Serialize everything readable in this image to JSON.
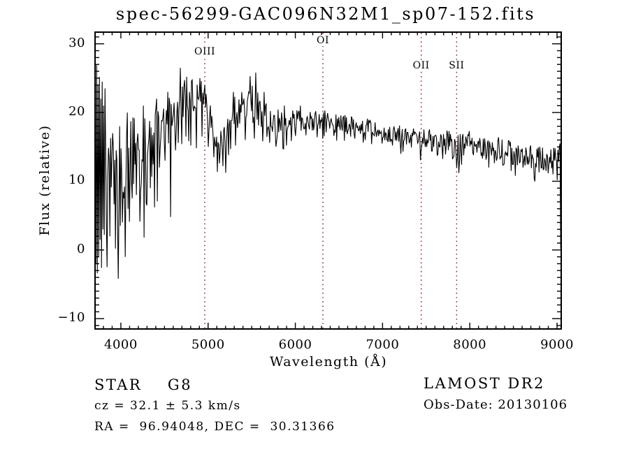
{
  "title": "spec-56299-GAC096N32M1_sp07-152.fits",
  "annotations": {
    "star_class": "STAR    G8",
    "cz": "cz = 32.1 ± 5.3 km/s",
    "radec": "RA =  96.94048, DEC =  30.31366",
    "survey": "LAMOST DR2",
    "obs_date": "Obs-Date: 20130106"
  },
  "chart_data": {
    "type": "line",
    "title": "spec-56299-GAC096N32M1_sp07-152.fits",
    "xlabel": "Wavelength (Å)",
    "ylabel": "Flux (relative)",
    "x_range": [
      3704,
      9048
    ],
    "y_range": [
      -11.5,
      31.7
    ],
    "x_ticks": [
      {
        "value": 4000,
        "label": "4000"
      },
      {
        "value": 5000,
        "label": "5000"
      },
      {
        "value": 6000,
        "label": "6000"
      },
      {
        "value": 7000,
        "label": "7000"
      },
      {
        "value": 8000,
        "label": "8000"
      },
      {
        "value": 9000,
        "label": "9000"
      }
    ],
    "y_ticks": [
      {
        "value": -10,
        "label": "−10"
      },
      {
        "value": 0,
        "label": "0"
      },
      {
        "value": 10,
        "label": "10"
      },
      {
        "value": 20,
        "label": "20"
      },
      {
        "value": 30,
        "label": "30"
      }
    ],
    "x_minor_step": 100,
    "y_minor_step": 1,
    "legend": "none",
    "grid": "off",
    "markers": [
      {
        "label": "OIII",
        "wavelength": 4962,
        "label_y": 74
      },
      {
        "label": "OI",
        "wavelength": 6316,
        "label_y": 58
      },
      {
        "label": "OII",
        "wavelength": 7443,
        "label_y": 94
      },
      {
        "label": "SII",
        "wavelength": 7849,
        "label_y": 94
      }
    ],
    "colors": {
      "line": "#000000",
      "marker_line": "#982424",
      "axis": "#000000",
      "background": "#ffffff"
    },
    "sample_step_angstrom": 8,
    "spectrum_envelope": [
      [
        3705,
        14,
        12
      ],
      [
        3725,
        11,
        12
      ],
      [
        3745,
        9.5,
        11
      ],
      [
        3770,
        10,
        9.5
      ],
      [
        3800,
        10,
        8.5
      ],
      [
        3830,
        10,
        8
      ],
      [
        3860,
        10.5,
        7.5
      ],
      [
        3900,
        10,
        7.5
      ],
      [
        3940,
        9.5,
        8.5
      ],
      [
        3970,
        10,
        8
      ],
      [
        4000,
        12,
        6.5
      ],
      [
        4040,
        13,
        6
      ],
      [
        4090,
        14,
        5.5
      ],
      [
        4140,
        14.5,
        5
      ],
      [
        4190,
        15,
        5
      ],
      [
        4240,
        14.5,
        5.5
      ],
      [
        4290,
        14,
        5.5
      ],
      [
        4340,
        15.2,
        5
      ],
      [
        4390,
        16.2,
        4.8
      ],
      [
        4440,
        17.6,
        4.3
      ],
      [
        4490,
        18.5,
        4
      ],
      [
        4540,
        19.2,
        4
      ],
      [
        4590,
        20.3,
        3.7
      ],
      [
        4640,
        21.2,
        3.3
      ],
      [
        4690,
        21.9,
        3
      ],
      [
        4740,
        22.3,
        2.9
      ],
      [
        4790,
        22.5,
        2.9
      ],
      [
        4840,
        22.2,
        2.9
      ],
      [
        4890,
        22.3,
        2.6
      ],
      [
        4940,
        21.8,
        2.6
      ],
      [
        4990,
        20.4,
        2.5
      ],
      [
        5040,
        18.6,
        2.6
      ],
      [
        5090,
        17.4,
        2.7
      ],
      [
        5140,
        16.6,
        3
      ],
      [
        5190,
        17.1,
        2.8
      ],
      [
        5240,
        18.2,
        2.6
      ],
      [
        5290,
        19.6,
        2.5
      ],
      [
        5340,
        20.3,
        2.5
      ],
      [
        5390,
        20.9,
        2.5
      ],
      [
        5440,
        21.3,
        2.6
      ],
      [
        5490,
        21.4,
        2.9
      ],
      [
        5540,
        21.1,
        2.7
      ],
      [
        5590,
        20.2,
        2.2
      ],
      [
        5640,
        19.7,
        2.1
      ],
      [
        5690,
        19.3,
        2
      ],
      [
        5740,
        19.1,
        2
      ],
      [
        5790,
        18.9,
        2.1
      ],
      [
        5840,
        18.7,
        2.1
      ],
      [
        5890,
        18.6,
        1.9
      ],
      [
        5950,
        18.9,
        1.6
      ],
      [
        6050,
        19,
        1.5
      ],
      [
        6150,
        18.9,
        1.5
      ],
      [
        6250,
        18.8,
        1.5
      ],
      [
        6350,
        18.6,
        1.4
      ],
      [
        6450,
        18.5,
        1.4
      ],
      [
        6550,
        18.2,
        1.5
      ],
      [
        6650,
        18.2,
        1.3
      ],
      [
        6750,
        18,
        1.3
      ],
      [
        6850,
        17.6,
        1.5
      ],
      [
        6950,
        17.4,
        1.3
      ],
      [
        7050,
        17.1,
        1.3
      ],
      [
        7150,
        16.9,
        1.4
      ],
      [
        7250,
        16.5,
        1.4
      ],
      [
        7350,
        16.4,
        1.3
      ],
      [
        7450,
        16.3,
        1.4
      ],
      [
        7550,
        16.2,
        1.4
      ],
      [
        7650,
        16,
        1.4
      ],
      [
        7750,
        15.8,
        1.6
      ],
      [
        7840,
        15.1,
        2.2
      ],
      [
        7880,
        14.9,
        2.3
      ],
      [
        7920,
        15.2,
        1.8
      ],
      [
        7980,
        15.5,
        1.4
      ],
      [
        8050,
        15.4,
        1.3
      ],
      [
        8150,
        15.1,
        1.5
      ],
      [
        8250,
        14.9,
        1.5
      ],
      [
        8350,
        14.6,
        1.5
      ],
      [
        8450,
        14.2,
        1.7
      ],
      [
        8550,
        13.9,
        1.7
      ],
      [
        8650,
        13.8,
        1.6
      ],
      [
        8750,
        13.6,
        1.7
      ],
      [
        8850,
        13.3,
        1.8
      ],
      [
        8950,
        13.2,
        1.9
      ],
      [
        9010,
        13.6,
        1.7
      ],
      [
        9035,
        13.5,
        1.5
      ],
      [
        9045,
        0.3,
        0.5
      ]
    ],
    "features_low": [
      [
        3710,
        -2
      ],
      [
        3726,
        -3.4
      ],
      [
        3742,
        -1
      ],
      [
        3758,
        1.5
      ],
      [
        3774,
        -2.6
      ],
      [
        3790,
        3
      ],
      [
        3806,
        2.2
      ],
      [
        3840,
        -2.5
      ],
      [
        3872,
        2
      ],
      [
        3908,
        1
      ],
      [
        3938,
        0.2
      ],
      [
        3966,
        -4.2
      ],
      [
        3992,
        3.5
      ],
      [
        4018,
        4
      ],
      [
        4046,
        -1
      ],
      [
        4082,
        6
      ],
      [
        4130,
        7.5
      ],
      [
        4176,
        8
      ],
      [
        4226,
        8.5
      ],
      [
        4262,
        1.8
      ],
      [
        4298,
        6.5
      ],
      [
        4340,
        9
      ],
      [
        4386,
        6.2
      ],
      [
        4440,
        12
      ],
      [
        4506,
        13
      ],
      [
        4572,
        4.8
      ],
      [
        4622,
        14.5
      ],
      [
        4682,
        16
      ],
      [
        4742,
        16.5
      ],
      [
        4802,
        15.2
      ],
      [
        4862,
        14.8
      ],
      [
        4930,
        16.5
      ],
      [
        5002,
        15
      ],
      [
        5062,
        13.5
      ],
      [
        5126,
        12.6
      ],
      [
        5172,
        12.2
      ],
      [
        5232,
        13.8
      ],
      [
        5312,
        15.2
      ],
      [
        5422,
        16
      ],
      [
        5530,
        16.2
      ],
      [
        5622,
        15.8
      ],
      [
        5706,
        15.6
      ],
      [
        5782,
        15.9
      ],
      [
        5894,
        15.2
      ],
      [
        6002,
        16.6
      ],
      [
        6122,
        16.7
      ],
      [
        6250,
        16.4
      ],
      [
        6310,
        16.2
      ],
      [
        6442,
        16.6
      ],
      [
        6562,
        15.9
      ],
      [
        6682,
        16.2
      ],
      [
        6802,
        16
      ],
      [
        6870,
        15.4
      ],
      [
        6990,
        15.5
      ],
      [
        7112,
        15.2
      ],
      [
        7232,
        14.3
      ],
      [
        7330,
        14.9
      ],
      [
        7442,
        14.5
      ],
      [
        7562,
        14.4
      ],
      [
        7632,
        13.9
      ],
      [
        7722,
        13.9
      ],
      [
        7802,
        13.2
      ],
      [
        7846,
        12
      ],
      [
        7872,
        11.2
      ],
      [
        7906,
        12.4
      ],
      [
        8042,
        13.8
      ],
      [
        8142,
        13.3
      ],
      [
        8216,
        12
      ],
      [
        8302,
        13
      ],
      [
        8390,
        12.5
      ],
      [
        8472,
        11.5
      ],
      [
        8522,
        10.8
      ],
      [
        8610,
        12
      ],
      [
        8702,
        11.9
      ],
      [
        8792,
        11.3
      ],
      [
        8872,
        11.5
      ],
      [
        8952,
        11
      ],
      [
        9040,
        0.2
      ]
    ],
    "features_high": [
      [
        3718,
        26.9
      ],
      [
        3734,
        24
      ],
      [
        3750,
        25.2
      ],
      [
        3766,
        22
      ],
      [
        3782,
        24.5
      ],
      [
        3798,
        21
      ],
      [
        3814,
        23.5
      ],
      [
        3902,
        17
      ],
      [
        3986,
        18
      ],
      [
        4070,
        20
      ],
      [
        4254,
        21
      ],
      [
        4410,
        22
      ],
      [
        4540,
        23
      ],
      [
        4680,
        26.5
      ],
      [
        4756,
        25.2
      ],
      [
        4810,
        24.6
      ],
      [
        4902,
        25
      ],
      [
        4960,
        24
      ],
      [
        5290,
        23
      ],
      [
        5482,
        25.3
      ],
      [
        5546,
        25.8
      ],
      [
        5642,
        23
      ],
      [
        5870,
        21
      ],
      [
        6060,
        21
      ],
      [
        6340,
        20.3
      ],
      [
        7990,
        17.3
      ],
      [
        8330,
        16.4
      ],
      [
        9030,
        15.5
      ]
    ]
  }
}
